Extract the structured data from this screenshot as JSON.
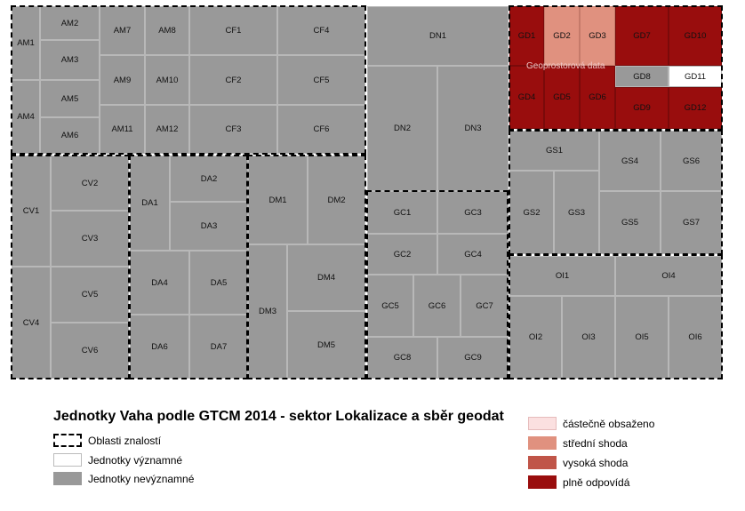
{
  "colors": {
    "not_significant": "#999999",
    "significant": "#ffffff",
    "partially_contained": "#fbe0e0",
    "medium_match": "#e0917f",
    "high_match": "#c05548",
    "full_match": "#990d0d"
  },
  "units": [
    {
      "label": "AM1",
      "level": "not_significant"
    },
    {
      "label": "AM2",
      "level": "not_significant"
    },
    {
      "label": "AM3",
      "level": "not_significant"
    },
    {
      "label": "AM4",
      "level": "not_significant"
    },
    {
      "label": "AM5",
      "level": "not_significant"
    },
    {
      "label": "AM6",
      "level": "not_significant"
    },
    {
      "label": "AM7",
      "level": "not_significant"
    },
    {
      "label": "AM8",
      "level": "not_significant"
    },
    {
      "label": "AM9",
      "level": "not_significant"
    },
    {
      "label": "AM10",
      "level": "not_significant"
    },
    {
      "label": "AM11",
      "level": "not_significant"
    },
    {
      "label": "AM12",
      "level": "not_significant"
    },
    {
      "label": "CF1",
      "level": "not_significant"
    },
    {
      "label": "CF2",
      "level": "not_significant"
    },
    {
      "label": "CF3",
      "level": "not_significant"
    },
    {
      "label": "CF4",
      "level": "not_significant"
    },
    {
      "label": "CF5",
      "level": "not_significant"
    },
    {
      "label": "CF6",
      "level": "not_significant"
    },
    {
      "label": "DN1",
      "level": "not_significant"
    },
    {
      "label": "DN2",
      "level": "not_significant"
    },
    {
      "label": "DN3",
      "level": "not_significant"
    },
    {
      "label": "GD1",
      "level": "full_match"
    },
    {
      "label": "GD2",
      "level": "medium_match"
    },
    {
      "label": "GD3",
      "level": "medium_match"
    },
    {
      "label": "GD7",
      "level": "full_match"
    },
    {
      "label": "GD10",
      "level": "full_match"
    },
    {
      "label": "GD8",
      "level": "not_significant"
    },
    {
      "label": "GD11",
      "level": "significant"
    },
    {
      "label": "GD4",
      "level": "full_match"
    },
    {
      "label": "GD5",
      "level": "full_match"
    },
    {
      "label": "GD6",
      "level": "full_match"
    },
    {
      "label": "GD9",
      "level": "full_match"
    },
    {
      "label": "GD12",
      "level": "full_match"
    },
    {
      "label": "CV1",
      "level": "not_significant"
    },
    {
      "label": "CV2",
      "level": "not_significant"
    },
    {
      "label": "CV3",
      "level": "not_significant"
    },
    {
      "label": "CV4",
      "level": "not_significant"
    },
    {
      "label": "CV5",
      "level": "not_significant"
    },
    {
      "label": "CV6",
      "level": "not_significant"
    },
    {
      "label": "DA1",
      "level": "not_significant"
    },
    {
      "label": "DA2",
      "level": "not_significant"
    },
    {
      "label": "DA3",
      "level": "not_significant"
    },
    {
      "label": "DA4",
      "level": "not_significant"
    },
    {
      "label": "DA5",
      "level": "not_significant"
    },
    {
      "label": "DA6",
      "level": "not_significant"
    },
    {
      "label": "DA7",
      "level": "not_significant"
    },
    {
      "label": "DM1",
      "level": "not_significant"
    },
    {
      "label": "DM2",
      "level": "not_significant"
    },
    {
      "label": "DM3",
      "level": "not_significant"
    },
    {
      "label": "DM4",
      "level": "not_significant"
    },
    {
      "label": "DM5",
      "level": "not_significant"
    },
    {
      "label": "GC1",
      "level": "not_significant"
    },
    {
      "label": "GC2",
      "level": "not_significant"
    },
    {
      "label": "GC3",
      "level": "not_significant"
    },
    {
      "label": "GC4",
      "level": "not_significant"
    },
    {
      "label": "GC5",
      "level": "not_significant"
    },
    {
      "label": "GC6",
      "level": "not_significant"
    },
    {
      "label": "GC7",
      "level": "not_significant"
    },
    {
      "label": "GC8",
      "level": "not_significant"
    },
    {
      "label": "GC9",
      "level": "not_significant"
    },
    {
      "label": "GS1",
      "level": "not_significant"
    },
    {
      "label": "GS2",
      "level": "not_significant"
    },
    {
      "label": "GS3",
      "level": "not_significant"
    },
    {
      "label": "GS4",
      "level": "not_significant"
    },
    {
      "label": "GS5",
      "level": "not_significant"
    },
    {
      "label": "GS6",
      "level": "not_significant"
    },
    {
      "label": "GS7",
      "level": "not_significant"
    },
    {
      "label": "OI1",
      "level": "not_significant"
    },
    {
      "label": "OI2",
      "level": "not_significant"
    },
    {
      "label": "OI3",
      "level": "not_significant"
    },
    {
      "label": "OI4",
      "level": "not_significant"
    },
    {
      "label": "OI5",
      "level": "not_significant"
    },
    {
      "label": "OI6",
      "level": "not_significant"
    }
  ],
  "overlay_label": "Geoprostorová data",
  "legend": {
    "title": "Jednotky Vaha podle GTCM 2014 - sektor Lokalizace a sběr geodat",
    "items_left": [
      {
        "label": "Oblasti znalostí",
        "style": "dashed"
      },
      {
        "label": "Jednotky významné",
        "level": "significant"
      },
      {
        "label": "Jednotky nevýznamné",
        "level": "not_significant"
      }
    ],
    "items_right": [
      {
        "label": "částečně obsaženo",
        "level": "partially_contained"
      },
      {
        "label": "střední shoda",
        "level": "medium_match"
      },
      {
        "label": "vysoká shoda",
        "level": "high_match"
      },
      {
        "label": "plně odpovídá",
        "level": "full_match"
      }
    ]
  }
}
